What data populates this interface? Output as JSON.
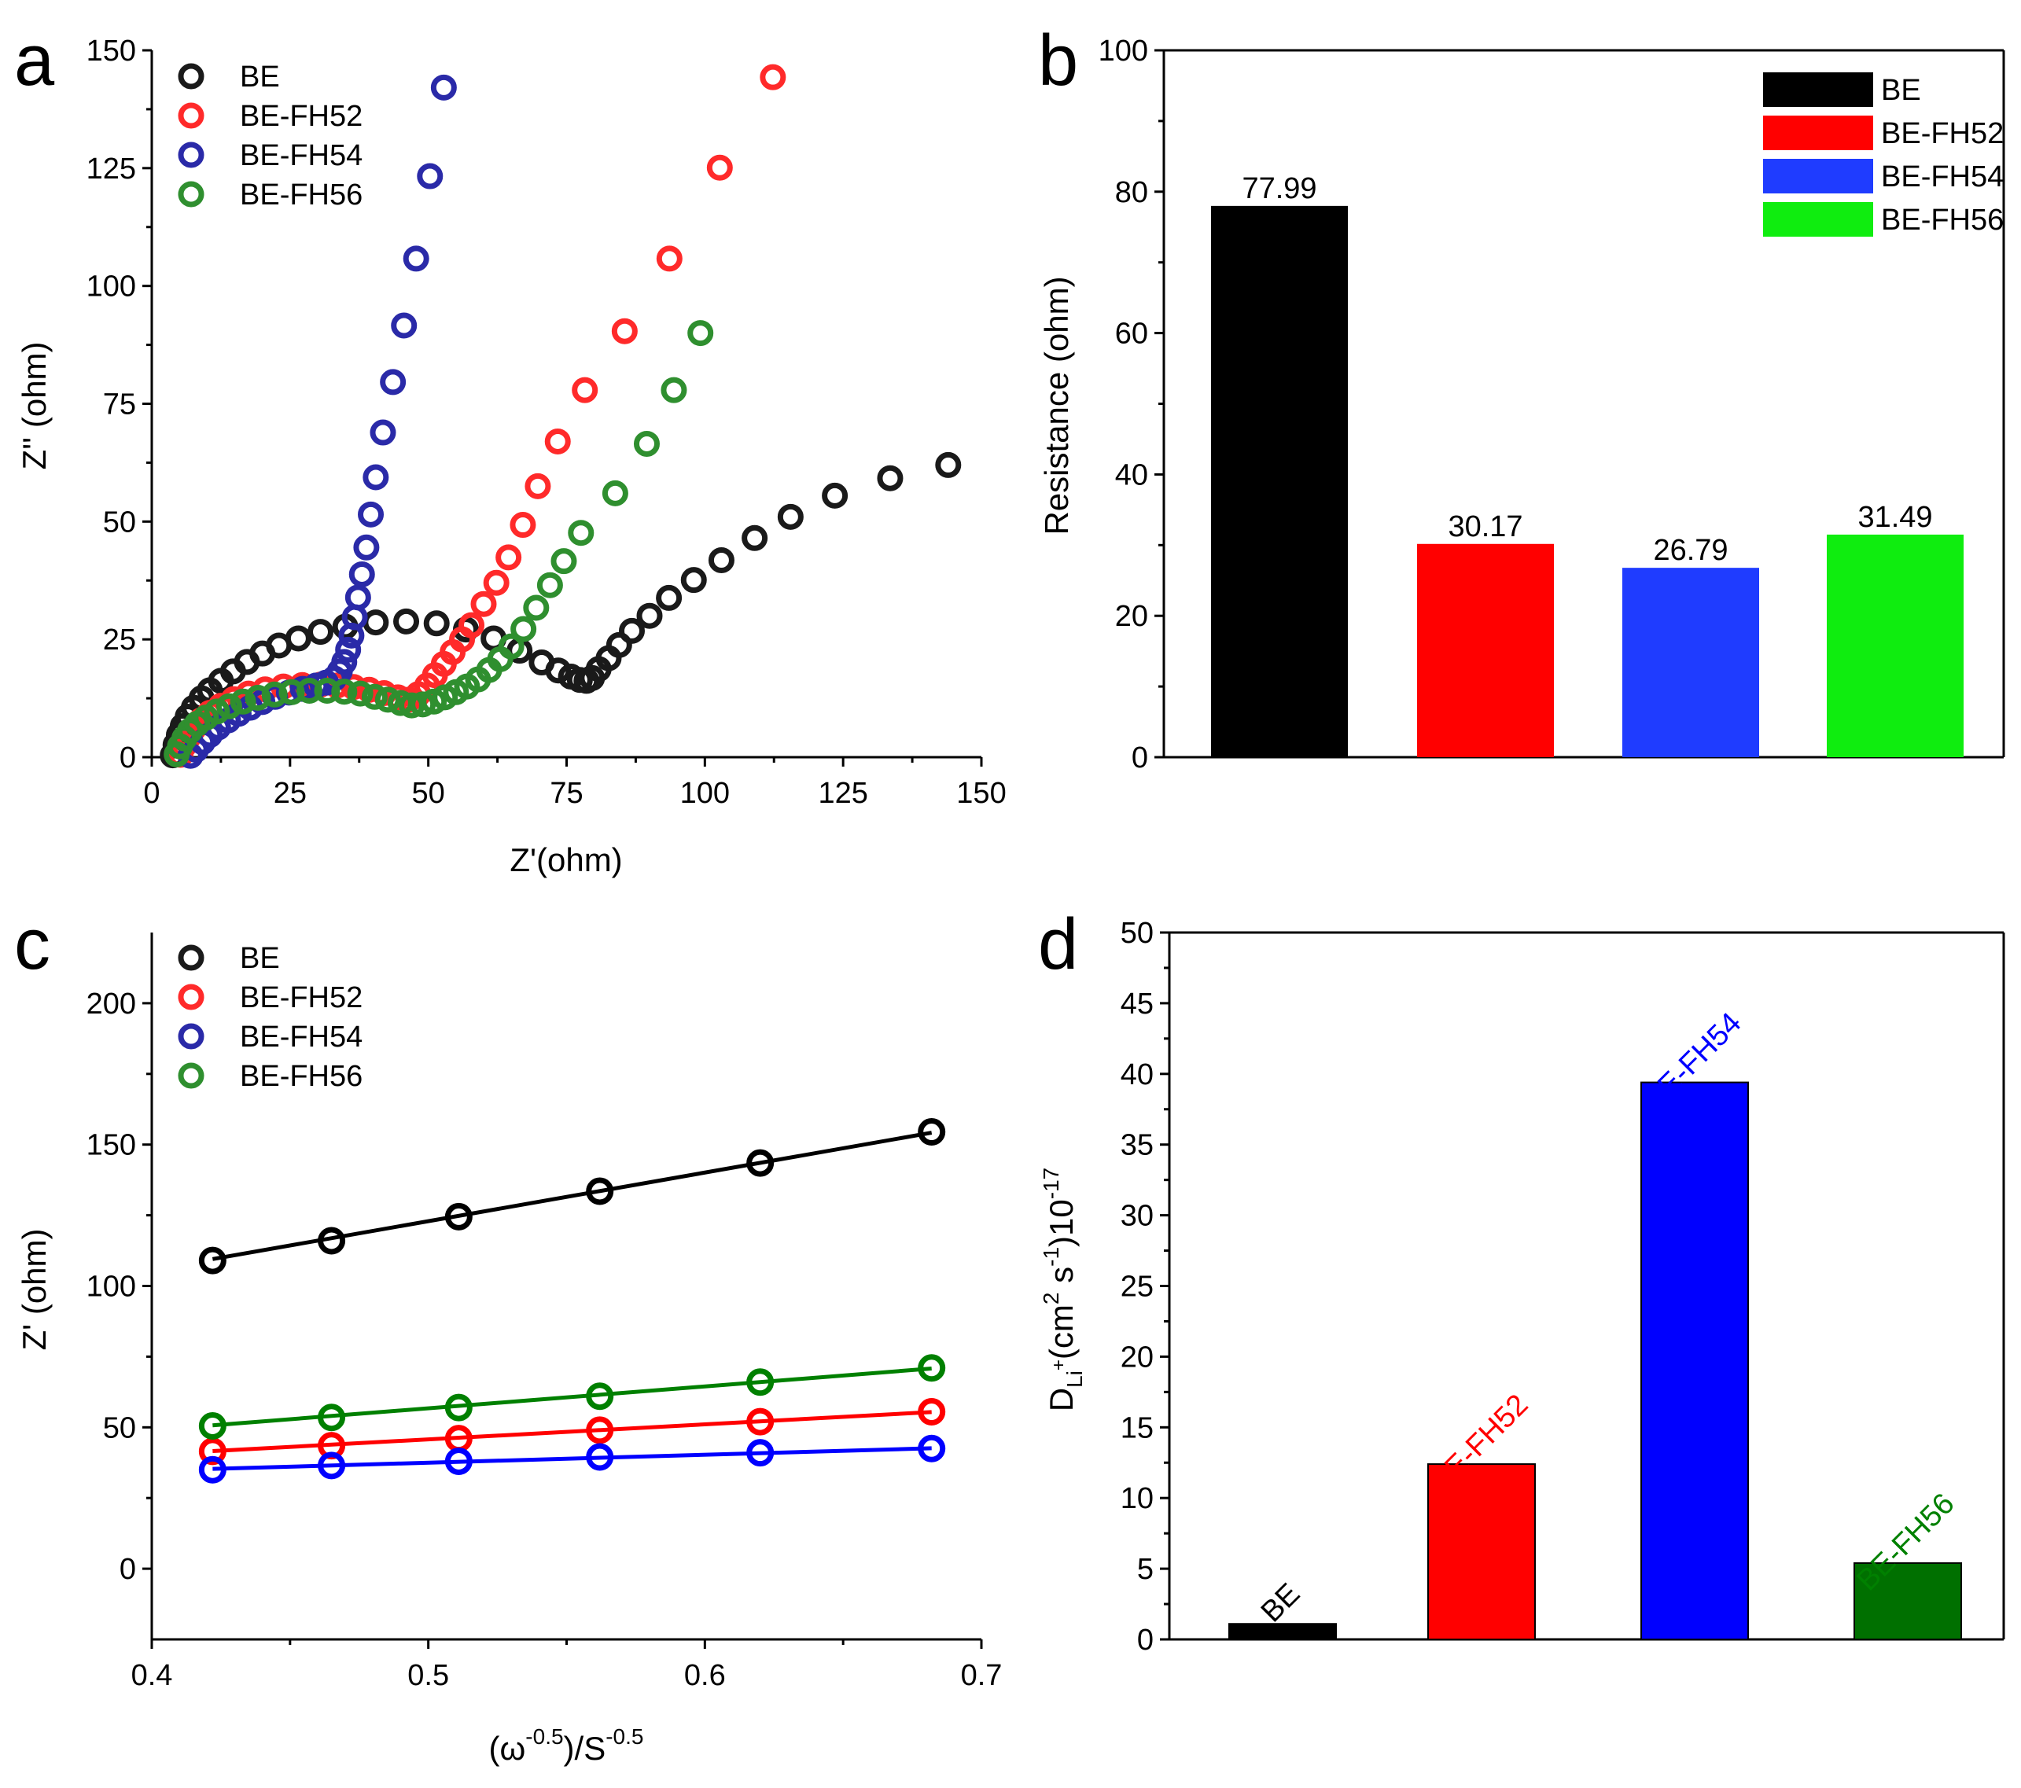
{
  "chart_data": [
    {
      "panel": "a",
      "type": "scatter",
      "xlabel": "Z'(ohm)",
      "ylabel": "Z'' (ohm)",
      "xlim": [
        0,
        150
      ],
      "ylim": [
        0,
        150
      ],
      "xticks": [
        0,
        25,
        50,
        75,
        100,
        125,
        150
      ],
      "yticks": [
        0,
        25,
        50,
        75,
        100,
        125,
        150
      ],
      "legend": "top-left",
      "series": [
        {
          "name": "BE",
          "color": "#1a1a1a",
          "points": [
            [
              3.8,
              0.4
            ],
            [
              4.3,
              2.6
            ],
            [
              4.9,
              4.7
            ],
            [
              5.6,
              6.6
            ],
            [
              6.5,
              8.6
            ],
            [
              7.6,
              10.5
            ],
            [
              9,
              12.5
            ],
            [
              10.5,
              14.2
            ],
            [
              12.5,
              16.2
            ],
            [
              14.7,
              18.2
            ],
            [
              17.2,
              20.2
            ],
            [
              20,
              22
            ],
            [
              23,
              23.7
            ],
            [
              26.5,
              25.2
            ],
            [
              30.5,
              26.6
            ],
            [
              35,
              27.7
            ],
            [
              40.5,
              28.6
            ],
            [
              46,
              28.8
            ],
            [
              51.5,
              28.4
            ],
            [
              56.8,
              27.1
            ],
            [
              61.8,
              25.2
            ],
            [
              66.5,
              22.6
            ],
            [
              70.5,
              20.1
            ],
            [
              73.5,
              18.4
            ],
            [
              75.8,
              17.1
            ],
            [
              77.4,
              16.4
            ],
            [
              78.6,
              16.2
            ],
            [
              79.6,
              16.8
            ],
            [
              80.8,
              18.7
            ],
            [
              82.6,
              21
            ],
            [
              84.5,
              23.8
            ],
            [
              86.8,
              26.8
            ],
            [
              90,
              30
            ],
            [
              93.5,
              33.8
            ],
            [
              98,
              37.6
            ],
            [
              103,
              41.8
            ],
            [
              109,
              46.5
            ],
            [
              115.5,
              51
            ],
            [
              123.5,
              55.5
            ],
            [
              133.5,
              59.2
            ],
            [
              144,
              62
            ]
          ]
        },
        {
          "name": "BE-FH52",
          "color": "#ff2a2a",
          "points": [
            [
              5.2,
              0.5
            ],
            [
              5.8,
              2.4
            ],
            [
              6.6,
              4.2
            ],
            [
              7.6,
              6.1
            ],
            [
              8.9,
              7.8
            ],
            [
              10.5,
              9.4
            ],
            [
              12.5,
              10.9
            ],
            [
              14.8,
              12.3
            ],
            [
              17.5,
              13.5
            ],
            [
              20.5,
              14.4
            ],
            [
              23.8,
              15
            ],
            [
              27.2,
              15.3
            ],
            [
              30.5,
              15.4
            ],
            [
              33.5,
              15.2
            ],
            [
              36.5,
              14.9
            ],
            [
              39.3,
              14.3
            ],
            [
              42,
              13.6
            ],
            [
              44.5,
              12.7
            ],
            [
              46.5,
              12.2
            ],
            [
              48.2,
              13.4
            ],
            [
              49.8,
              15.2
            ],
            [
              51.2,
              17.4
            ],
            [
              52.8,
              19.8
            ],
            [
              54.4,
              22.3
            ],
            [
              56.1,
              25
            ],
            [
              57.8,
              28
            ],
            [
              60,
              32.5
            ],
            [
              62.3,
              37
            ],
            [
              64.5,
              42.4
            ],
            [
              67.1,
              49.3
            ],
            [
              69.8,
              57.5
            ],
            [
              73.4,
              67
            ],
            [
              78.3,
              77.9
            ],
            [
              85.5,
              90.4
            ],
            [
              93.6,
              105.8
            ],
            [
              102.7,
              125.1
            ],
            [
              112.3,
              144.3
            ]
          ]
        },
        {
          "name": "BE-FH54",
          "color": "#2a2aa8",
          "points": [
            [
              7,
              0.3
            ],
            [
              8,
              1.6
            ],
            [
              9.2,
              3.2
            ],
            [
              10.5,
              4.7
            ],
            [
              12,
              6.3
            ],
            [
              13.8,
              7.8
            ],
            [
              15.7,
              9.2
            ],
            [
              17.8,
              10.5
            ],
            [
              20,
              11.7
            ],
            [
              22.3,
              12.8
            ],
            [
              24.8,
              13.7
            ],
            [
              27.3,
              14.5
            ],
            [
              29.7,
              15.2
            ],
            [
              31.5,
              15.8
            ],
            [
              33,
              16.7
            ],
            [
              34,
              18.2
            ],
            [
              34.8,
              20.2
            ],
            [
              35.5,
              22.8
            ],
            [
              36.1,
              25.8
            ],
            [
              36.7,
              29.7
            ],
            [
              37.3,
              33.9
            ],
            [
              38,
              38.8
            ],
            [
              38.8,
              44.5
            ],
            [
              39.6,
              51.5
            ],
            [
              40.5,
              59.4
            ],
            [
              41.8,
              68.9
            ],
            [
              43.6,
              79.6
            ],
            [
              45.6,
              91.6
            ],
            [
              47.8,
              105.8
            ],
            [
              50.3,
              123.3
            ],
            [
              52.8,
              142.1
            ]
          ]
        },
        {
          "name": "BE-FH56",
          "color": "#2f8f2f",
          "points": [
            [
              4.5,
              0.6
            ],
            [
              5.1,
              2.3
            ],
            [
              5.9,
              4
            ],
            [
              6.9,
              5.6
            ],
            [
              8.2,
              7.1
            ],
            [
              9.8,
              8.4
            ],
            [
              11.8,
              9.7
            ],
            [
              14,
              10.8
            ],
            [
              16.5,
              11.8
            ],
            [
              19.2,
              12.6
            ],
            [
              22.2,
              13.3
            ],
            [
              25.3,
              13.8
            ],
            [
              28.5,
              14.1
            ],
            [
              31.7,
              14.1
            ],
            [
              34.8,
              13.9
            ],
            [
              37.7,
              13.5
            ],
            [
              40.3,
              12.8
            ],
            [
              42.7,
              12.2
            ],
            [
              45,
              11.5
            ],
            [
              47,
              11
            ],
            [
              49,
              11.2
            ],
            [
              51,
              11.8
            ],
            [
              53,
              12.7
            ],
            [
              55,
              13.8
            ],
            [
              57,
              15
            ],
            [
              59,
              16.5
            ],
            [
              61,
              18.5
            ],
            [
              63,
              20.8
            ],
            [
              65,
              23.5
            ],
            [
              67.2,
              27.2
            ],
            [
              69.5,
              31.7
            ],
            [
              72,
              36.5
            ],
            [
              74.5,
              41.6
            ],
            [
              77.6,
              47.6
            ],
            [
              83.8,
              56
            ],
            [
              89.5,
              66.5
            ],
            [
              94.4,
              77.9
            ],
            [
              99.2,
              90
            ]
          ]
        }
      ]
    },
    {
      "panel": "b",
      "type": "bar",
      "ylabel": "Resistance (ohm)",
      "ylim": [
        0,
        100
      ],
      "yticks": [
        0,
        20,
        40,
        60,
        80,
        100
      ],
      "categories": [
        "BE",
        "BE-FH52",
        "BE-FH54",
        "BE-FH56"
      ],
      "values": [
        77.99,
        30.17,
        26.79,
        31.49
      ],
      "value_labels": [
        "77.99",
        "30.17",
        "26.79",
        "31.49"
      ],
      "colors": [
        "#000000",
        "#ff0000",
        "#1f3cff",
        "#0fed0f"
      ],
      "legend": "top-right"
    },
    {
      "panel": "c",
      "type": "scatter",
      "xlabel": "(ω^-0.5)/S^-0.5",
      "ylabel": "Z' (ohm)",
      "xlim": [
        0.4,
        0.7
      ],
      "ylim": [
        -25,
        225
      ],
      "xticks": [
        0.4,
        0.5,
        0.6,
        0.7
      ],
      "yticks": [
        0,
        50,
        100,
        150,
        200
      ],
      "legend": "top-left",
      "x": [
        0.422,
        0.465,
        0.511,
        0.562,
        0.62,
        0.682
      ],
      "series": [
        {
          "name": "BE",
          "color": "#000000",
          "marker_color": "#1a1a1a",
          "values": [
            109,
            116,
            124.5,
            133.5,
            143.5,
            154.5
          ],
          "fit": [
            109.5,
            154.2
          ]
        },
        {
          "name": "BE-FH52",
          "color": "#ff0000",
          "marker_color": "#ff2a2a",
          "values": [
            41.5,
            43.5,
            46,
            49,
            52,
            55.5
          ],
          "fit": [
            41.6,
            55.4
          ]
        },
        {
          "name": "BE-FH54",
          "color": "#0000ff",
          "marker_color": "#2a2aa8",
          "values": [
            35,
            36.5,
            38,
            39.5,
            41,
            42.5
          ],
          "fit": [
            35.3,
            42.6
          ]
        },
        {
          "name": "BE-FH56",
          "color": "#008000",
          "marker_color": "#2f8f2f",
          "values": [
            50.5,
            53.5,
            57,
            61,
            66,
            71
          ],
          "fit": [
            50.7,
            70.8
          ]
        }
      ]
    },
    {
      "panel": "d",
      "type": "bar",
      "ylabel": "D_Li+(cm² s⁻¹)10⁻¹⁷",
      "ylabel_parts": {
        "d": "D",
        "li": "Li",
        "plus": "+",
        "open": "(cm",
        "two": "2",
        "s": " s",
        "minus_one": "-1",
        "close": ")10",
        "exp": "-17"
      },
      "ylim": [
        0,
        50
      ],
      "yticks": [
        0,
        5,
        10,
        15,
        20,
        25,
        30,
        35,
        40,
        45,
        50
      ],
      "categories": [
        "BE",
        "BE-FH52",
        "BE-FH54",
        "BE-FH56"
      ],
      "values": [
        1.1,
        12.4,
        39.4,
        5.4
      ],
      "colors": [
        "#000000",
        "#ff0000",
        "#0000ff",
        "#007000"
      ],
      "label_colors": [
        "#000000",
        "#ff0000",
        "#0000ff",
        "#008000"
      ]
    }
  ],
  "panel_letters": [
    "a",
    "b",
    "c",
    "d"
  ],
  "c_xlabel_parts": {
    "open": "(ω",
    "sup1": "-0.5",
    "mid": ")/S",
    "sup2": "-0.5"
  }
}
